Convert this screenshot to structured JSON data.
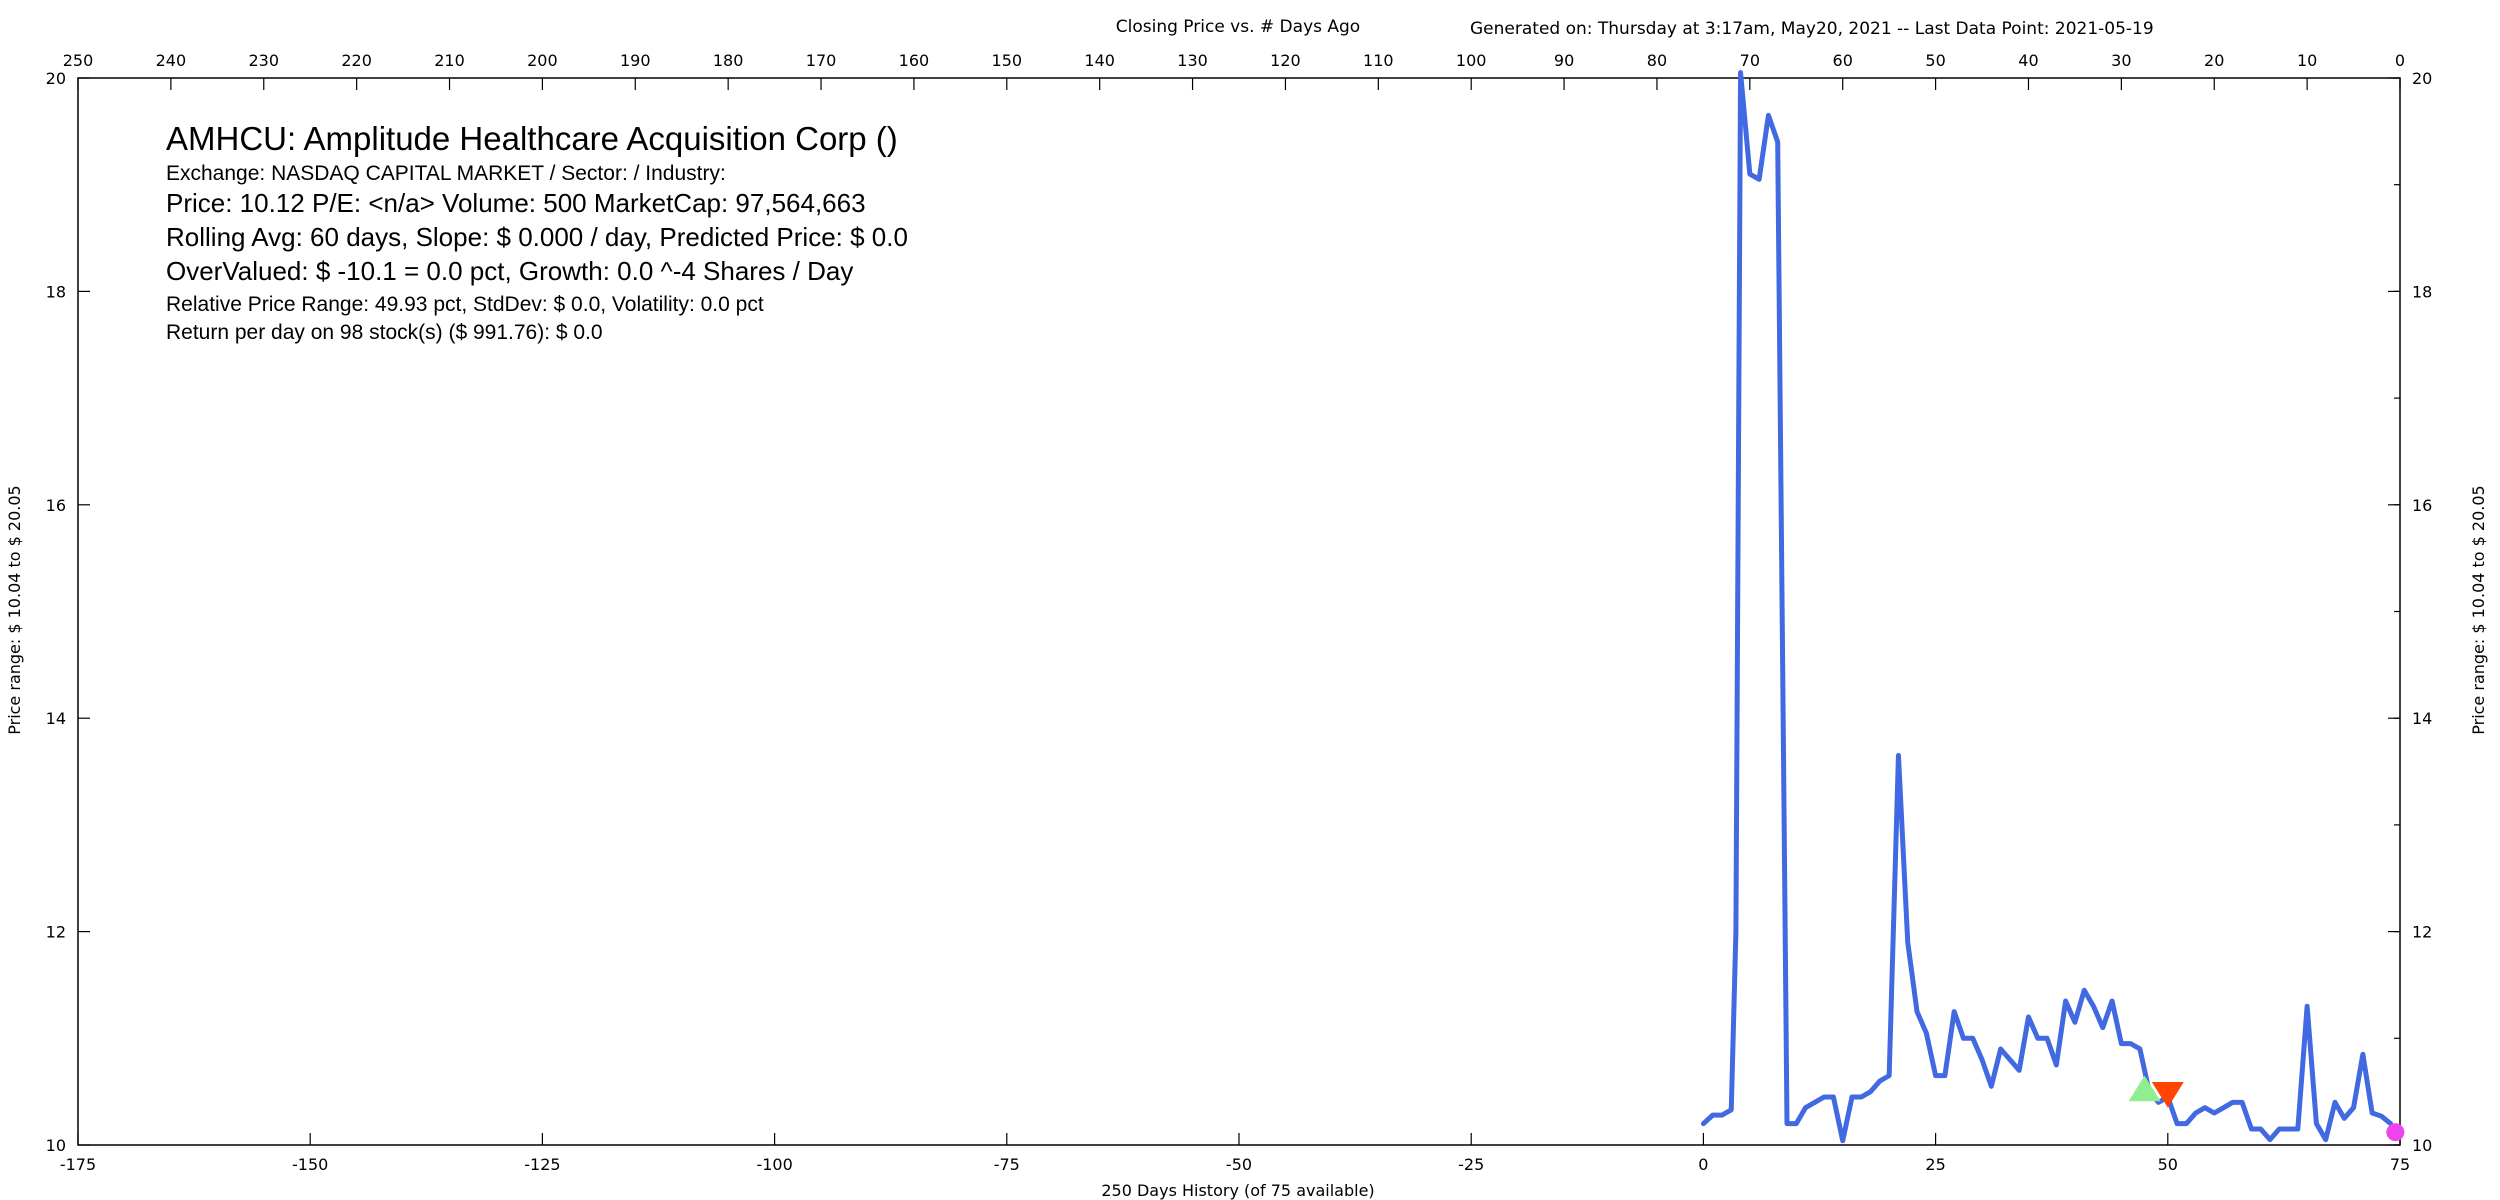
{
  "header": {
    "subtitle": "Closing Price vs. # Days Ago",
    "generated": "Generated on:  Thursday at  3:17am, May20, 2021  --  Last Data Point:  2021-05-19"
  },
  "info": {
    "line1": "AMHCU:  Amplitude Healthcare Acquisition Corp  ()",
    "line2": "Exchange: NASDAQ CAPITAL MARKET  /  Sector:   /  Industry:",
    "line3": "Price: 10.12  P/E: <n/a> Volume: 500  MarketCap: 97,564,663",
    "line4": "Rolling Avg: 60 days, Slope: $ 0.000 / day, Predicted Price: $ 0.0",
    "line5": "OverValued: $ -10.1 = 0.0 pct,  Growth: 0.0 ^-4 Shares / Day",
    "line6": "Relative Price Range: 49.93 pct, StdDev: $ 0.0, Volatility: 0.0 pct",
    "line7": "Return per day on 98 stock(s) ($ 991.76): $ 0.0"
  },
  "chart_data": {
    "type": "line",
    "xlabel": "250 Days History (of 75 available)",
    "ylabel_left": "Price range:  $ 10.04  to  $ 20.05",
    "ylabel_right": "Price range: $ 10.04  to  $ 20.05",
    "xlim": [
      -175,
      75
    ],
    "ylim": [
      10,
      20
    ],
    "x_ticks_bottom": [
      -175,
      -150,
      -125,
      -100,
      -75,
      -50,
      -25,
      0,
      25,
      50,
      75
    ],
    "x_ticks_top_labels": [
      "250",
      "240",
      "230",
      "220",
      "210",
      "200",
      "190",
      "180",
      "170",
      "160",
      "150",
      "140",
      "130",
      "120",
      "110",
      "100",
      "90",
      "80",
      "70",
      "60",
      "50",
      "40",
      "30",
      "20",
      "10",
      "0"
    ],
    "y_ticks": [
      10,
      12,
      14,
      16,
      18,
      20
    ],
    "grid": false,
    "line_color": "#4169E1",
    "series": [
      {
        "values": [
          [
            0,
            10.2
          ],
          [
            1,
            10.28
          ],
          [
            2,
            10.28
          ],
          [
            3,
            10.33
          ],
          [
            3.5,
            12.0
          ],
          [
            4,
            20.05
          ],
          [
            5,
            19.1
          ],
          [
            6,
            19.05
          ],
          [
            7,
            19.65
          ],
          [
            8,
            19.4
          ],
          [
            9,
            10.2
          ],
          [
            10,
            10.2
          ],
          [
            11,
            10.35
          ],
          [
            12,
            10.4
          ],
          [
            13,
            10.45
          ],
          [
            14,
            10.45
          ],
          [
            15,
            10.04
          ],
          [
            16,
            10.45
          ],
          [
            17,
            10.45
          ],
          [
            18,
            10.5
          ],
          [
            19,
            10.6
          ],
          [
            20,
            10.65
          ],
          [
            21,
            13.65
          ],
          [
            22,
            11.9
          ],
          [
            23,
            11.25
          ],
          [
            24,
            11.05
          ],
          [
            25,
            10.65
          ],
          [
            26,
            10.65
          ],
          [
            27,
            11.25
          ],
          [
            28,
            11.0
          ],
          [
            29,
            11.0
          ],
          [
            30,
            10.8
          ],
          [
            31,
            10.55
          ],
          [
            32,
            10.9
          ],
          [
            33,
            10.8
          ],
          [
            34,
            10.7
          ],
          [
            35,
            11.2
          ],
          [
            36,
            11.0
          ],
          [
            37,
            11.0
          ],
          [
            38,
            10.75
          ],
          [
            39,
            11.35
          ],
          [
            40,
            11.15
          ],
          [
            41,
            11.45
          ],
          [
            42,
            11.3
          ],
          [
            43,
            11.1
          ],
          [
            44,
            11.35
          ],
          [
            45,
            10.95
          ],
          [
            46,
            10.95
          ],
          [
            47,
            10.9
          ],
          [
            48,
            10.5
          ],
          [
            49,
            10.4
          ],
          [
            50,
            10.45
          ],
          [
            51,
            10.2
          ],
          [
            52,
            10.2
          ],
          [
            53,
            10.3
          ],
          [
            54,
            10.35
          ],
          [
            55,
            10.3
          ],
          [
            56,
            10.35
          ],
          [
            57,
            10.4
          ],
          [
            58,
            10.4
          ],
          [
            59,
            10.15
          ],
          [
            60,
            10.15
          ],
          [
            61,
            10.05
          ],
          [
            62,
            10.15
          ],
          [
            63,
            10.15
          ],
          [
            64,
            10.15
          ],
          [
            65,
            11.3
          ],
          [
            66,
            10.2
          ],
          [
            67,
            10.05
          ],
          [
            68,
            10.4
          ],
          [
            69,
            10.25
          ],
          [
            70,
            10.35
          ],
          [
            71,
            10.85
          ],
          [
            72,
            10.3
          ],
          [
            73,
            10.27
          ],
          [
            74,
            10.2
          ]
        ]
      }
    ],
    "markers": [
      {
        "shape": "triangle-up",
        "x": 47.5,
        "y": 10.5,
        "color": "#90EE90"
      },
      {
        "shape": "triangle-down",
        "x": 50.0,
        "y": 10.5,
        "color": "#FF4500"
      },
      {
        "shape": "circle",
        "x": 74.5,
        "y": 10.12,
        "color": "#EE44EE"
      }
    ]
  }
}
